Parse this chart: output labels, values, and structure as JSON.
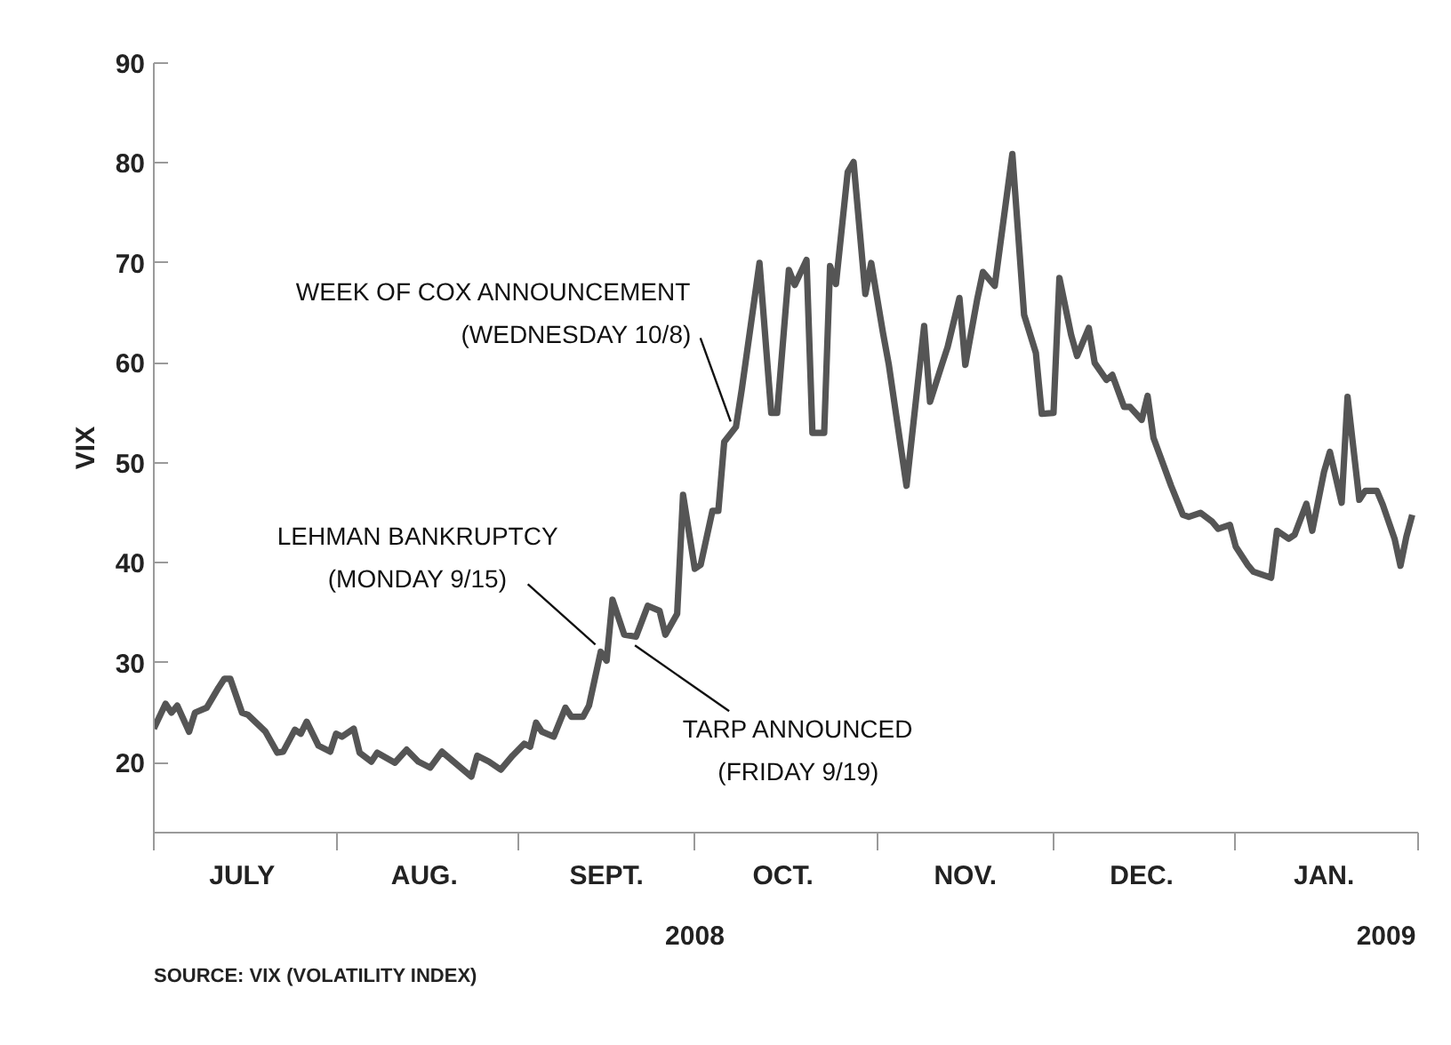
{
  "chart_data": {
    "type": "line",
    "ylabel": "VIX",
    "x": [
      "2008-07-01",
      "2008-07-03",
      "2008-07-04",
      "2008-07-05",
      "2008-07-07",
      "2008-07-08",
      "2008-07-10",
      "2008-07-12",
      "2008-07-13",
      "2008-07-14",
      "2008-07-16",
      "2008-07-17",
      "2008-07-20",
      "2008-07-22",
      "2008-07-23",
      "2008-07-25",
      "2008-07-26",
      "2008-07-27",
      "2008-07-29",
      "2008-07-31",
      "2008-08-01",
      "2008-08-02",
      "2008-08-04",
      "2008-08-05",
      "2008-08-07",
      "2008-08-08",
      "2008-08-11",
      "2008-08-13",
      "2008-08-15",
      "2008-08-17",
      "2008-08-19",
      "2008-08-21",
      "2008-08-24",
      "2008-08-25",
      "2008-08-27",
      "2008-08-29",
      "2008-08-31",
      "2008-09-02",
      "2008-09-03",
      "2008-09-04",
      "2008-09-05",
      "2008-09-07",
      "2008-09-09",
      "2008-09-10",
      "2008-09-12",
      "2008-09-13",
      "2008-09-15",
      "2008-09-16",
      "2008-09-17",
      "2008-09-19",
      "2008-09-21",
      "2008-09-23",
      "2008-09-25",
      "2008-09-26",
      "2008-09-28",
      "2008-09-29",
      "2008-10-01",
      "2008-10-02",
      "2008-10-04",
      "2008-10-05",
      "2008-10-06",
      "2008-10-08",
      "2008-10-09",
      "2008-10-12",
      "2008-10-14",
      "2008-10-15",
      "2008-10-17",
      "2008-10-18",
      "2008-10-20",
      "2008-10-21",
      "2008-10-23",
      "2008-10-24",
      "2008-10-25",
      "2008-10-27",
      "2008-10-28",
      "2008-10-30",
      "2008-10-31",
      "2008-11-02",
      "2008-11-03",
      "2008-11-06",
      "2008-11-09",
      "2008-11-10",
      "2008-11-12",
      "2008-11-13",
      "2008-11-15",
      "2008-11-16",
      "2008-11-18",
      "2008-11-19",
      "2008-11-21",
      "2008-11-24",
      "2008-11-26",
      "2008-11-28",
      "2008-11-29",
      "2008-12-01",
      "2008-12-02",
      "2008-12-04",
      "2008-12-05",
      "2008-12-07",
      "2008-12-08",
      "2008-12-10",
      "2008-12-11",
      "2008-12-13",
      "2008-12-14",
      "2008-12-16",
      "2008-12-17",
      "2008-12-18",
      "2008-12-21",
      "2008-12-23",
      "2008-12-24",
      "2008-12-26",
      "2008-12-28",
      "2008-12-29",
      "2008-12-31",
      "2009-01-01",
      "2009-01-03",
      "2009-01-04",
      "2009-01-05",
      "2009-01-07",
      "2009-01-08",
      "2009-01-10",
      "2009-01-11",
      "2009-01-13",
      "2009-01-14",
      "2009-01-16",
      "2009-01-17",
      "2009-01-19",
      "2009-01-20",
      "2009-01-22",
      "2009-01-23",
      "2009-01-25",
      "2009-01-26",
      "2009-01-28",
      "2009-01-29",
      "2009-01-30",
      "2009-01-31"
    ],
    "series": [
      {
        "color": "#555555",
        "values": [
          23.4,
          25.9,
          25.0,
          25.7,
          23.1,
          25.0,
          25.5,
          27.5,
          28.4,
          28.4,
          25.0,
          24.8,
          23.1,
          21.0,
          21.1,
          23.3,
          22.9,
          24.1,
          21.7,
          21.1,
          22.9,
          22.6,
          23.4,
          21.0,
          20.1,
          21.0,
          20.0,
          21.3,
          20.1,
          19.5,
          21.1,
          20.1,
          18.6,
          20.7,
          20.1,
          19.3,
          20.7,
          21.9,
          21.6,
          24.0,
          23.1,
          22.6,
          25.5,
          24.6,
          24.6,
          25.7,
          31.1,
          30.2,
          36.3,
          32.8,
          32.6,
          35.7,
          35.2,
          32.8,
          34.9,
          46.8,
          39.4,
          39.8,
          45.2,
          45.2,
          52.1,
          53.6,
          57.4,
          70.0,
          55.0,
          55.0,
          69.3,
          67.8,
          70.3,
          53.0,
          53.0,
          69.7,
          67.9,
          79.1,
          80.1,
          66.9,
          70.0,
          63.0,
          59.8,
          47.7,
          63.7,
          56.1,
          59.8,
          61.6,
          66.5,
          59.8,
          66.3,
          69.1,
          67.7,
          80.9,
          64.8,
          61.0,
          54.9,
          55.0,
          68.5,
          62.8,
          60.7,
          63.5,
          60.0,
          58.3,
          58.8,
          55.6,
          55.6,
          54.3,
          56.7,
          52.5,
          47.7,
          44.8,
          44.6,
          45.0,
          44.1,
          43.4,
          43.8,
          41.6,
          39.8,
          39.1,
          38.9,
          38.5,
          43.2,
          42.4,
          42.8,
          45.9,
          43.2,
          49.1,
          51.1,
          46.0,
          56.6,
          46.3,
          47.2,
          47.2,
          45.8,
          42.4,
          39.7,
          42.6,
          44.8
        ]
      }
    ],
    "xlim": [
      "2008-07-01",
      "2009-02-01"
    ],
    "ylim": [
      13,
      90
    ],
    "yticks": [
      20,
      30,
      40,
      50,
      60,
      70,
      80,
      90
    ],
    "xticks": [
      {
        "value": "2008-07-01",
        "label": null
      },
      {
        "value": "2008-08-01",
        "label": null
      },
      {
        "value": "2008-09-01",
        "label": null
      },
      {
        "value": "2008-10-01",
        "label": null
      },
      {
        "value": "2008-11-01",
        "label": null
      },
      {
        "value": "2008-12-01",
        "label": null
      },
      {
        "value": "2009-01-01",
        "label": null
      },
      {
        "value": "2009-02-01",
        "label": null
      },
      {
        "value": "2008-07-16",
        "label": "JULY"
      },
      {
        "value": "2008-08-16",
        "label": "AUG."
      },
      {
        "value": "2008-09-16",
        "label": "SEPT."
      },
      {
        "value": "2008-10-16",
        "label": "OCT."
      },
      {
        "value": "2008-11-16",
        "label": "NOV."
      },
      {
        "value": "2008-12-16",
        "label": "DEC."
      },
      {
        "value": "2009-01-16",
        "label": "JAN."
      }
    ],
    "grid": false,
    "annotations": [
      {
        "text": "WEEK OF COX ANNOUNCEMENT\n(WEDNESDAY 10/8)",
        "x": "2008-10-08",
        "y": 53.6
      },
      {
        "text": "LEHMAN BANKRUPTCY\n(MONDAY 9/15)",
        "x": "2008-09-15",
        "y": 31.1
      },
      {
        "text": "TARP ANNOUNCED\n(FRIDAY 9/19)",
        "x": "2008-09-19",
        "y": 32.8
      },
      "2008",
      "2009",
      "SOURCE: VIX (VOLATILITY INDEX)"
    ]
  }
}
